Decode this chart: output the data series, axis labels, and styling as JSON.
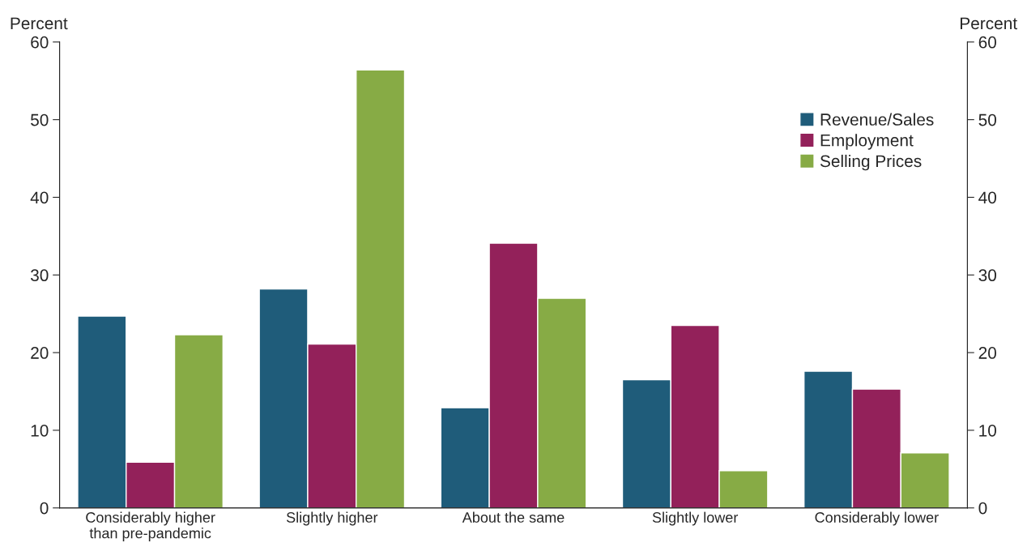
{
  "chart_data": {
    "type": "bar",
    "ylabel": "Percent",
    "y2label": "Percent",
    "categories": [
      "Considerably higher\nthan pre-pandemic",
      "Slightly higher",
      "About the same",
      "Slightly lower",
      "Considerably lower"
    ],
    "series": [
      {
        "name": "Revenue/Sales",
        "color": "#1f5c7a",
        "values": [
          24.7,
          28.2,
          12.9,
          16.5,
          17.6
        ]
      },
      {
        "name": "Employment",
        "color": "#93215a",
        "values": [
          5.9,
          21.1,
          34.1,
          23.5,
          15.3
        ]
      },
      {
        "name": "Selling Prices",
        "color": "#87ab45",
        "values": [
          22.3,
          56.4,
          27.0,
          4.8,
          7.1
        ]
      }
    ],
    "ylim": [
      0,
      60
    ],
    "yticks": [
      0,
      10,
      20,
      30,
      40,
      50,
      60
    ],
    "y2lim": [
      0,
      60
    ],
    "y2ticks": [
      0,
      10,
      20,
      30,
      40,
      50,
      60
    ],
    "grid": false,
    "legend": "top right"
  }
}
